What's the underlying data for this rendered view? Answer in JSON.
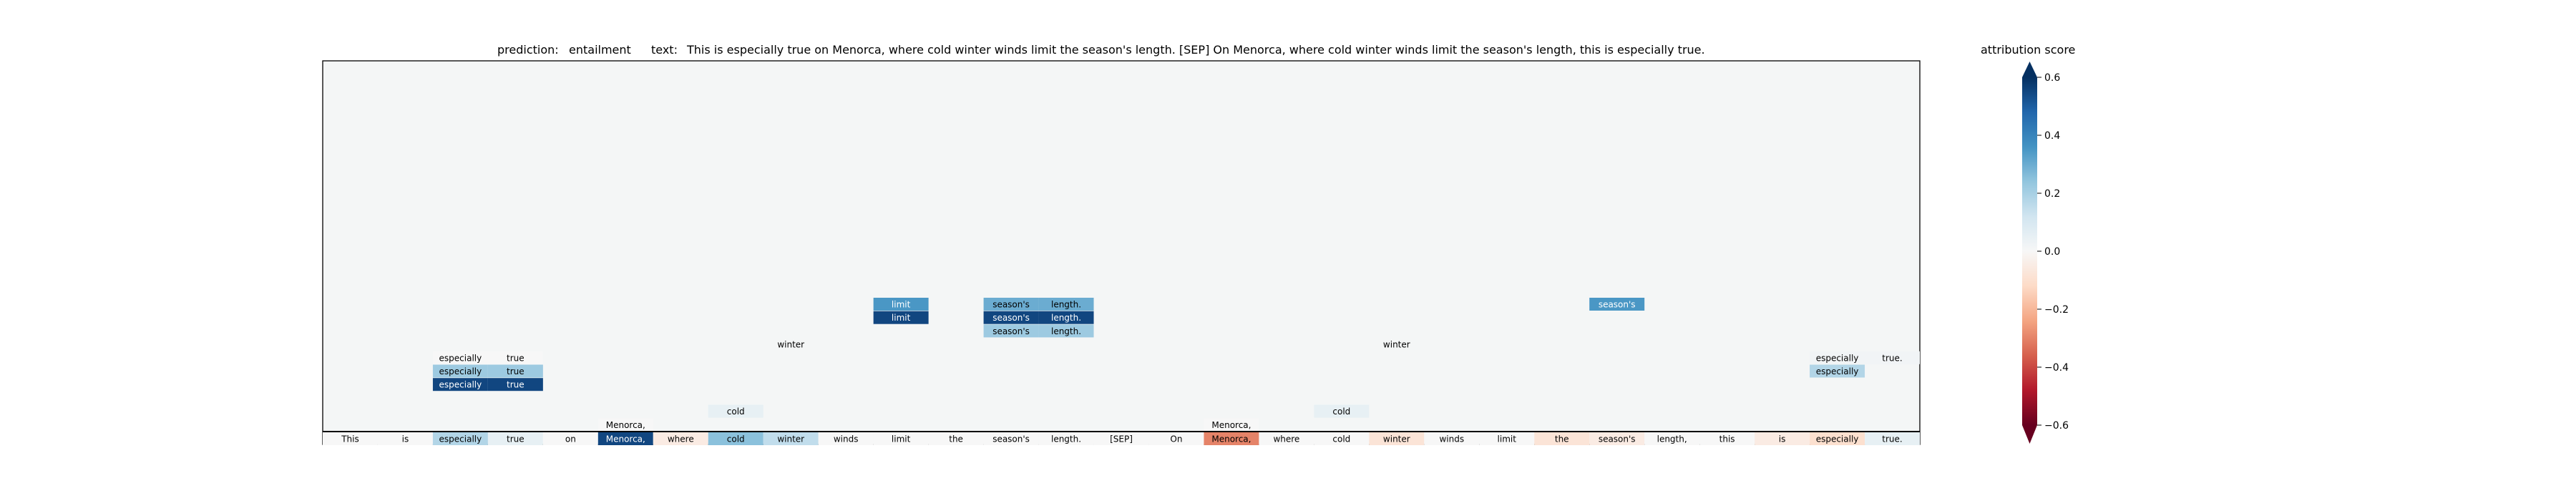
{
  "header": {
    "prediction_label": "prediction:",
    "prediction_value": "entailment",
    "text_label": "text:",
    "text_value": "This is especially true on Menorca, where cold winter winds limit the season's length. [SEP] On Menorca, where cold winter winds limit the season's length, this is especially true."
  },
  "colorbar": {
    "title": "attribution score",
    "ticks": [
      "0.6",
      "0.4",
      "0.2",
      "0.0",
      "−0.2",
      "−0.4",
      "−0.6"
    ],
    "tick_values": [
      0.6,
      0.4,
      0.2,
      0.0,
      -0.2,
      -0.4,
      -0.6
    ],
    "range": [
      -0.6,
      0.6
    ],
    "colormap": "RdBu"
  },
  "chart_data": {
    "type": "heatmap",
    "tokens": [
      "This",
      "is",
      "especially",
      "true",
      "on",
      "Menorca,",
      "where",
      "cold",
      "winter",
      "winds",
      "limit",
      "the",
      "season's",
      "length.",
      "[SEP]",
      "On",
      "Menorca,",
      "where",
      "cold",
      "winter",
      "winds",
      "limit",
      "the",
      "season's",
      "length,",
      "this",
      "is",
      "especially",
      "true."
    ],
    "token_scores": [
      0.0,
      0.0,
      0.18,
      0.05,
      0.0,
      0.55,
      -0.05,
      0.25,
      0.15,
      0.0,
      0.0,
      0.0,
      0.0,
      0.0,
      0.0,
      0.0,
      -0.3,
      0.0,
      0.0,
      -0.08,
      0.0,
      0.0,
      -0.08,
      -0.05,
      0.0,
      0.0,
      -0.05,
      -0.1,
      0.05
    ],
    "rows": [
      {
        "level": 1,
        "cells": [
          {
            "i": 5,
            "text": "Menorca,",
            "score": 0.0
          },
          {
            "i": 16,
            "text": "Menorca,",
            "score": 0.0
          }
        ]
      },
      {
        "level": 2,
        "cells": [
          {
            "i": 7,
            "text": "cold",
            "score": 0.05
          },
          {
            "i": 18,
            "text": "cold",
            "score": 0.05
          }
        ]
      },
      {
        "level": 4,
        "cells": [
          {
            "i": 2,
            "text": "especially",
            "score": 0.55
          },
          {
            "i": 3,
            "text": "true",
            "score": 0.55
          }
        ]
      },
      {
        "level": 5,
        "cells": [
          {
            "i": 2,
            "text": "especially",
            "score": 0.22
          },
          {
            "i": 3,
            "text": "true",
            "score": 0.22
          },
          {
            "i": 27,
            "text": "especially",
            "score": 0.18
          }
        ]
      },
      {
        "level": 6,
        "cells": [
          {
            "i": 2,
            "text": "especially",
            "score": 0.0
          },
          {
            "i": 3,
            "text": "true",
            "score": 0.0
          },
          {
            "i": 27,
            "text": "especially",
            "score": 0.02
          },
          {
            "i": 28,
            "text": "true.",
            "score": 0.02
          }
        ]
      },
      {
        "level": 7,
        "cells": [
          {
            "i": 8,
            "text": "winter",
            "score": 0.01
          },
          {
            "i": 19,
            "text": "winter",
            "score": 0.01
          }
        ]
      },
      {
        "level": 8,
        "cells": [
          {
            "i": 12,
            "text": "season's",
            "score": 0.22
          },
          {
            "i": 13,
            "text": "length.",
            "score": 0.22
          }
        ]
      },
      {
        "level": 9,
        "cells": [
          {
            "i": 10,
            "text": "limit",
            "score": 0.55
          },
          {
            "i": 12,
            "text": "season's",
            "score": 0.55
          },
          {
            "i": 13,
            "text": "length.",
            "score": 0.55
          }
        ]
      },
      {
        "level": 10,
        "cells": [
          {
            "i": 10,
            "text": "limit",
            "score": 0.35
          },
          {
            "i": 12,
            "text": "season's",
            "score": 0.3
          },
          {
            "i": 13,
            "text": "length.",
            "score": 0.3
          },
          {
            "i": 23,
            "text": "season's",
            "score": 0.35
          }
        ]
      }
    ]
  }
}
